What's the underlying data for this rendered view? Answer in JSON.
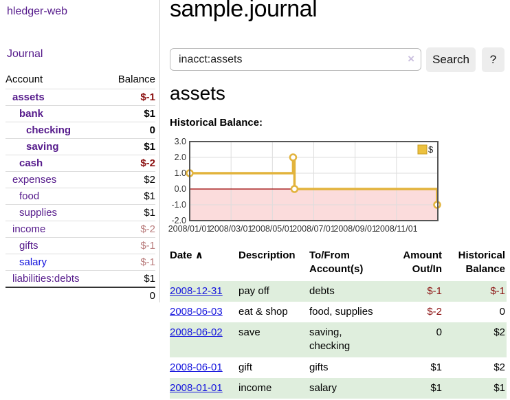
{
  "app": {
    "title": "hledger-web"
  },
  "colors": {
    "purple": "#551a8b",
    "blue": "#1414dd",
    "negStrong": "#8b1010",
    "negSoft": "#b97c7c",
    "stripe": "#dfeedd",
    "gold": "#e2b33c",
    "goldFill": "#ecc13e",
    "pink": "#fbdcdc",
    "zeroLine": "#990000",
    "chartBorder": "#555555",
    "grid": "#dddddd"
  },
  "sidebar": {
    "nav_journal": "Journal",
    "accounts_table": {
      "headers": {
        "account": "Account",
        "balance": "Balance"
      },
      "rows": [
        {
          "name": "assets",
          "balance": "$-1",
          "indent": 1,
          "bold": true,
          "balance_color": "negative-strong"
        },
        {
          "name": "bank",
          "balance": "$1",
          "indent": 2,
          "bold": true,
          "balance_color": "normal"
        },
        {
          "name": "checking",
          "balance": "0",
          "indent": 3,
          "bold": true,
          "balance_color": "normal"
        },
        {
          "name": "saving",
          "balance": "$1",
          "indent": 3,
          "bold": true,
          "balance_color": "normal"
        },
        {
          "name": "cash",
          "balance": "$-2",
          "indent": 2,
          "bold": true,
          "balance_color": "negative-strong"
        },
        {
          "name": "expenses",
          "balance": "$2",
          "indent": 1,
          "bold": false,
          "balance_color": "normal"
        },
        {
          "name": "food",
          "balance": "$1",
          "indent": 2,
          "bold": false,
          "balance_color": "normal"
        },
        {
          "name": "supplies",
          "balance": "$1",
          "indent": 2,
          "bold": false,
          "balance_color": "normal"
        },
        {
          "name": "income",
          "balance": "$-2",
          "indent": 1,
          "bold": false,
          "balance_color": "negative-soft"
        },
        {
          "name": "gifts",
          "balance": "$-1",
          "indent": 2,
          "bold": false,
          "balance_color": "negative-soft"
        },
        {
          "name": "salary",
          "balance": "$-1",
          "indent": 2,
          "bold": false,
          "balance_color": "negative-soft",
          "link_color": "blue"
        },
        {
          "name": "liabilities:debts",
          "balance": "$1",
          "indent": 1,
          "bold": false,
          "balance_color": "normal"
        }
      ],
      "total": "0"
    }
  },
  "main": {
    "title": "sample.journal",
    "search": {
      "value": "inacct:assets",
      "clear_icon": "×",
      "button_label": "Search",
      "help_label": "?"
    },
    "section_title": "assets",
    "chart_label": "Historical Balance:"
  },
  "chart_data": {
    "type": "line",
    "step": true,
    "title": "Historical Balance:",
    "series": [
      {
        "name": "$",
        "points": [
          [
            "2008-01-01",
            1
          ],
          [
            "2008-06-01",
            2
          ],
          [
            "2008-06-03",
            0
          ],
          [
            "2008-12-31",
            -1
          ]
        ]
      }
    ],
    "x_ticks": [
      "2008/01/01",
      "2008/03/01",
      "2008/05/01",
      "2008/07/01",
      "2008/09/01",
      "2008/11/01"
    ],
    "y_tick_labels": [
      "3.0",
      "2.0",
      "1.0",
      "0.0",
      "-1.0",
      "-2.0"
    ],
    "y_ticks": [
      3,
      2,
      1,
      0,
      -1,
      -2
    ],
    "ylim": [
      -2,
      3
    ],
    "grid": true,
    "negative_region_shaded": true,
    "legend": {
      "label": "$",
      "position": "top-right"
    }
  },
  "register_table": {
    "headers": {
      "date": "Date",
      "sort_indicator": "∧",
      "description": "Description",
      "accounts_l1": "To/From",
      "accounts_l2": "Account(s)",
      "amount_l1": "Amount",
      "amount_l2": "Out/In",
      "balance_l1": "Historical",
      "balance_l2": "Balance"
    },
    "rows": [
      {
        "date": "2008-12-31",
        "description": "pay off",
        "accounts": "debts",
        "amount": "$-1",
        "amount_neg": true,
        "balance": "$-1",
        "balance_neg": true
      },
      {
        "date": "2008-06-03",
        "description": "eat & shop",
        "accounts": "food, supplies",
        "amount": "$-2",
        "amount_neg": true,
        "balance": "0",
        "balance_neg": false
      },
      {
        "date": "2008-06-02",
        "description": "save",
        "accounts": "saving, checking",
        "amount": "0",
        "amount_neg": false,
        "balance": "$2",
        "balance_neg": false
      },
      {
        "date": "2008-06-01",
        "description": "gift",
        "accounts": "gifts",
        "amount": "$1",
        "amount_neg": false,
        "balance": "$2",
        "balance_neg": false
      },
      {
        "date": "2008-01-01",
        "description": "income",
        "accounts": "salary",
        "amount": "$1",
        "amount_neg": false,
        "balance": "$1",
        "balance_neg": false
      }
    ]
  }
}
